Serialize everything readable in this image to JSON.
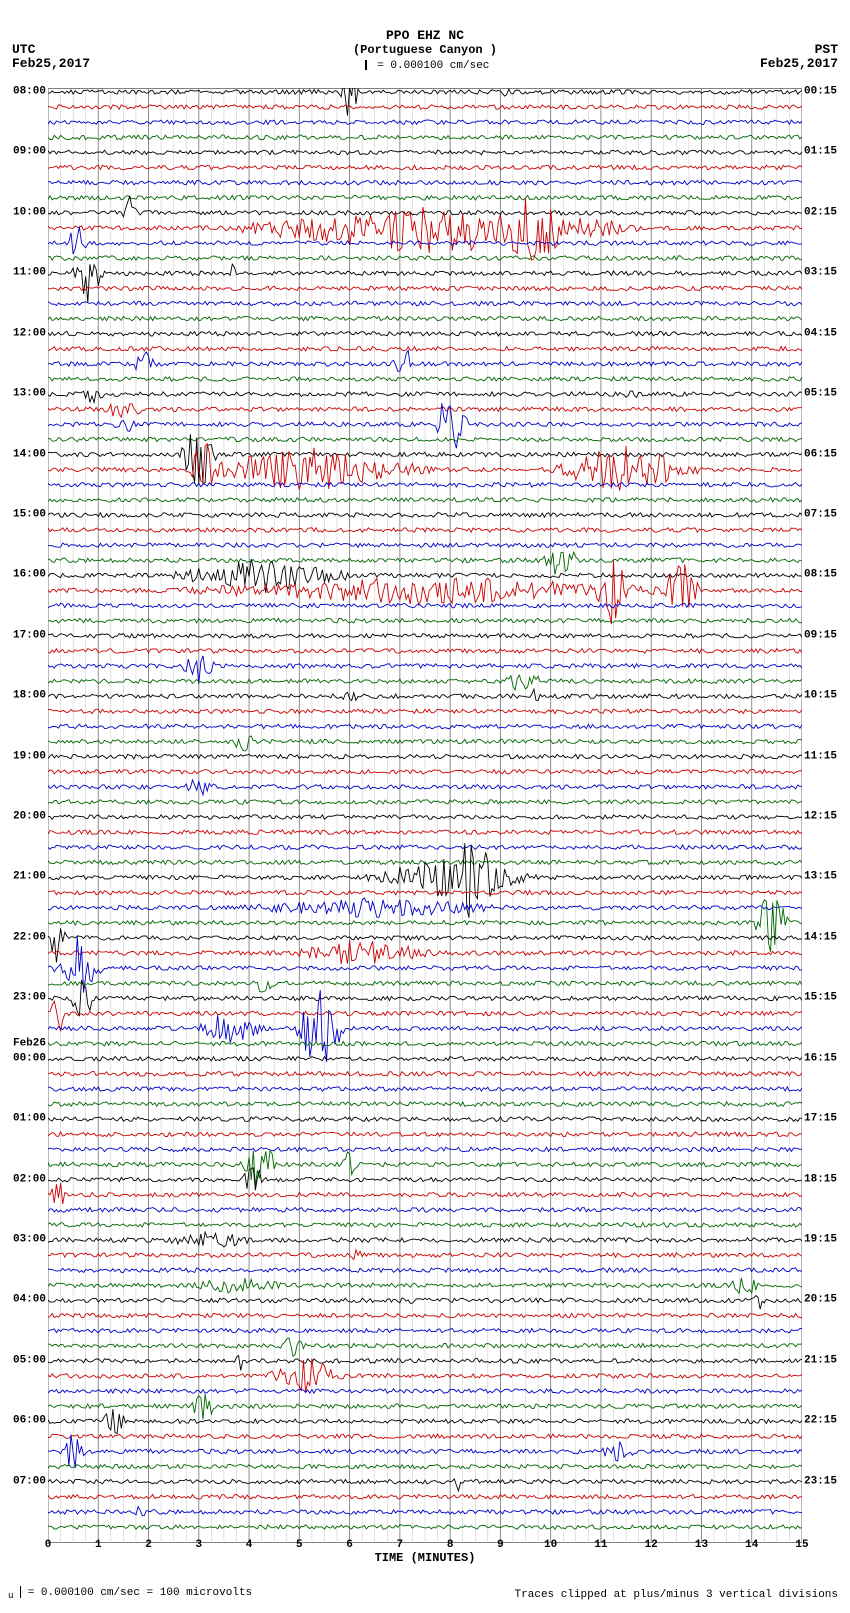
{
  "header": {
    "station": "PPO EHZ NC",
    "location": "(Portuguese Canyon )",
    "scale_text": "= 0.000100 cm/sec"
  },
  "timezones": {
    "left": "UTC",
    "right": "PST"
  },
  "dates": {
    "left": "Feb25,2017",
    "right": "Feb25,2017"
  },
  "axis": {
    "xlabel": "TIME (MINUTES)",
    "xmin": 0,
    "xmax": 15,
    "xtick_step": 1,
    "minor_per_major": 4,
    "grid_color": "#808080",
    "grid_minor_color": "#b8b8b8",
    "border_color": "#000000"
  },
  "footer": {
    "left": "= 0.000100 cm/sec =    100 microvolts",
    "right": "Traces clipped at plus/minus 3 vertical divisions"
  },
  "trace_colors": [
    "#000000",
    "#cc0000",
    "#0000cc",
    "#006600"
  ],
  "total_traces": 96,
  "trace_spacing_relative": 0.0104,
  "left_hour_labels": [
    {
      "label": "08:00",
      "line": 0
    },
    {
      "label": "09:00",
      "line": 4
    },
    {
      "label": "10:00",
      "line": 8
    },
    {
      "label": "11:00",
      "line": 12
    },
    {
      "label": "12:00",
      "line": 16
    },
    {
      "label": "13:00",
      "line": 20
    },
    {
      "label": "14:00",
      "line": 24
    },
    {
      "label": "15:00",
      "line": 28
    },
    {
      "label": "16:00",
      "line": 32
    },
    {
      "label": "17:00",
      "line": 36
    },
    {
      "label": "18:00",
      "line": 40
    },
    {
      "label": "19:00",
      "line": 44
    },
    {
      "label": "20:00",
      "line": 48
    },
    {
      "label": "21:00",
      "line": 52
    },
    {
      "label": "22:00",
      "line": 56
    },
    {
      "label": "23:00",
      "line": 60
    },
    {
      "label": "Feb26",
      "line": 63
    },
    {
      "label": "00:00",
      "line": 64
    },
    {
      "label": "01:00",
      "line": 68
    },
    {
      "label": "02:00",
      "line": 72
    },
    {
      "label": "03:00",
      "line": 76
    },
    {
      "label": "04:00",
      "line": 80
    },
    {
      "label": "05:00",
      "line": 84
    },
    {
      "label": "06:00",
      "line": 88
    },
    {
      "label": "07:00",
      "line": 92
    }
  ],
  "right_hour_labels": [
    {
      "label": "00:15",
      "line": 0
    },
    {
      "label": "01:15",
      "line": 4
    },
    {
      "label": "02:15",
      "line": 8
    },
    {
      "label": "03:15",
      "line": 12
    },
    {
      "label": "04:15",
      "line": 16
    },
    {
      "label": "05:15",
      "line": 20
    },
    {
      "label": "06:15",
      "line": 24
    },
    {
      "label": "07:15",
      "line": 28
    },
    {
      "label": "08:15",
      "line": 32
    },
    {
      "label": "09:15",
      "line": 36
    },
    {
      "label": "10:15",
      "line": 40
    },
    {
      "label": "11:15",
      "line": 44
    },
    {
      "label": "12:15",
      "line": 48
    },
    {
      "label": "13:15",
      "line": 52
    },
    {
      "label": "14:15",
      "line": 56
    },
    {
      "label": "15:15",
      "line": 60
    },
    {
      "label": "16:15",
      "line": 64
    },
    {
      "label": "17:15",
      "line": 68
    },
    {
      "label": "18:15",
      "line": 72
    },
    {
      "label": "19:15",
      "line": 76
    },
    {
      "label": "20:15",
      "line": 80
    },
    {
      "label": "21:15",
      "line": 84
    },
    {
      "label": "22:15",
      "line": 88
    },
    {
      "label": "23:15",
      "line": 92
    }
  ],
  "baseline_noise": 0.15,
  "events": [
    {
      "line": 0,
      "start": 5.8,
      "end": 6.2,
      "amp": 2.2
    },
    {
      "line": 0,
      "start": 9.0,
      "end": 9.2,
      "amp": 0.6
    },
    {
      "line": 8,
      "start": 1.4,
      "end": 1.8,
      "amp": 1.4
    },
    {
      "line": 9,
      "start": 3.0,
      "end": 12.5,
      "amp": 1.8
    },
    {
      "line": 9,
      "start": 8.5,
      "end": 10.8,
      "amp": 2.4
    },
    {
      "line": 10,
      "start": 0.3,
      "end": 0.8,
      "amp": 1.6
    },
    {
      "line": 12,
      "start": 0.4,
      "end": 1.2,
      "amp": 2.0
    },
    {
      "line": 12,
      "start": 3.5,
      "end": 3.8,
      "amp": 0.8
    },
    {
      "line": 18,
      "start": 1.6,
      "end": 2.2,
      "amp": 1.0
    },
    {
      "line": 18,
      "start": 6.8,
      "end": 7.4,
      "amp": 1.2
    },
    {
      "line": 20,
      "start": 0.6,
      "end": 1.2,
      "amp": 0.8
    },
    {
      "line": 20,
      "start": 11.4,
      "end": 11.8,
      "amp": 0.6
    },
    {
      "line": 21,
      "start": 1.0,
      "end": 2.0,
      "amp": 0.8
    },
    {
      "line": 22,
      "start": 7.6,
      "end": 8.4,
      "amp": 2.6
    },
    {
      "line": 22,
      "start": 1.2,
      "end": 1.8,
      "amp": 0.8
    },
    {
      "line": 24,
      "start": 2.6,
      "end": 3.4,
      "amp": 2.8
    },
    {
      "line": 25,
      "start": 2.4,
      "end": 8.0,
      "amp": 1.6
    },
    {
      "line": 25,
      "start": 9.8,
      "end": 13.2,
      "amp": 1.8
    },
    {
      "line": 25,
      "start": 2.8,
      "end": 3.4,
      "amp": 2.6
    },
    {
      "line": 31,
      "start": 9.8,
      "end": 10.6,
      "amp": 1.6
    },
    {
      "line": 32,
      "start": 2.0,
      "end": 6.5,
      "amp": 1.2
    },
    {
      "line": 33,
      "start": 1.4,
      "end": 14.0,
      "amp": 1.0
    },
    {
      "line": 33,
      "start": 10.8,
      "end": 11.6,
      "amp": 3.0
    },
    {
      "line": 33,
      "start": 12.2,
      "end": 13.0,
      "amp": 2.6
    },
    {
      "line": 38,
      "start": 2.6,
      "end": 3.4,
      "amp": 1.2
    },
    {
      "line": 39,
      "start": 8.8,
      "end": 10.0,
      "amp": 0.8
    },
    {
      "line": 40,
      "start": 5.8,
      "end": 6.2,
      "amp": 0.8
    },
    {
      "line": 40,
      "start": 9.6,
      "end": 9.8,
      "amp": 1.0
    },
    {
      "line": 43,
      "start": 3.6,
      "end": 4.2,
      "amp": 0.8
    },
    {
      "line": 46,
      "start": 2.6,
      "end": 3.4,
      "amp": 0.7
    },
    {
      "line": 52,
      "start": 6.0,
      "end": 10.0,
      "amp": 1.4
    },
    {
      "line": 52,
      "start": 7.6,
      "end": 9.2,
      "amp": 2.8
    },
    {
      "line": 54,
      "start": 3.0,
      "end": 10.0,
      "amp": 0.7
    },
    {
      "line": 55,
      "start": 14.0,
      "end": 14.8,
      "amp": 3.0
    },
    {
      "line": 56,
      "start": 0.0,
      "end": 0.4,
      "amp": 2.4
    },
    {
      "line": 57,
      "start": 4.6,
      "end": 8.0,
      "amp": 1.0
    },
    {
      "line": 58,
      "start": 0.0,
      "end": 1.2,
      "amp": 2.2
    },
    {
      "line": 59,
      "start": 4.0,
      "end": 4.6,
      "amp": 0.8
    },
    {
      "line": 60,
      "start": 0.4,
      "end": 1.0,
      "amp": 1.6
    },
    {
      "line": 61,
      "start": 0.0,
      "end": 0.4,
      "amp": 2.0
    },
    {
      "line": 62,
      "start": 2.8,
      "end": 4.4,
      "amp": 1.4
    },
    {
      "line": 62,
      "start": 4.8,
      "end": 6.0,
      "amp": 3.0
    },
    {
      "line": 71,
      "start": 3.8,
      "end": 4.6,
      "amp": 2.4
    },
    {
      "line": 71,
      "start": 5.8,
      "end": 6.2,
      "amp": 1.2
    },
    {
      "line": 72,
      "start": 3.8,
      "end": 4.4,
      "amp": 1.2
    },
    {
      "line": 73,
      "start": 0.0,
      "end": 0.4,
      "amp": 1.2
    },
    {
      "line": 76,
      "start": 2.0,
      "end": 4.5,
      "amp": 0.6
    },
    {
      "line": 77,
      "start": 6.0,
      "end": 6.3,
      "amp": 0.7
    },
    {
      "line": 79,
      "start": 2.5,
      "end": 5.0,
      "amp": 0.6
    },
    {
      "line": 79,
      "start": 13.5,
      "end": 14.2,
      "amp": 1.0
    },
    {
      "line": 80,
      "start": 7.0,
      "end": 7.3,
      "amp": 0.6
    },
    {
      "line": 80,
      "start": 14.0,
      "end": 14.3,
      "amp": 0.8
    },
    {
      "line": 83,
      "start": 4.5,
      "end": 5.2,
      "amp": 0.8
    },
    {
      "line": 84,
      "start": 3.6,
      "end": 4.0,
      "amp": 0.8
    },
    {
      "line": 85,
      "start": 4.2,
      "end": 6.0,
      "amp": 1.4
    },
    {
      "line": 87,
      "start": 2.8,
      "end": 3.4,
      "amp": 1.2
    },
    {
      "line": 88,
      "start": 1.0,
      "end": 1.6,
      "amp": 1.2
    },
    {
      "line": 90,
      "start": 0.2,
      "end": 0.8,
      "amp": 1.4
    },
    {
      "line": 90,
      "start": 10.8,
      "end": 11.8,
      "amp": 0.8
    },
    {
      "line": 92,
      "start": 8.0,
      "end": 8.3,
      "amp": 0.7
    },
    {
      "line": 94,
      "start": 1.6,
      "end": 2.0,
      "amp": 0.6
    }
  ]
}
